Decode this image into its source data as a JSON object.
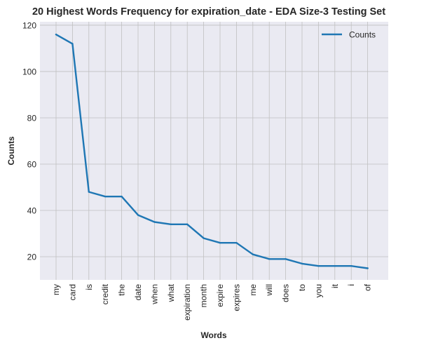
{
  "chart_data": {
    "type": "line",
    "title": "20 Highest Words Frequency for expiration_date - EDA Size-3 Testing Set",
    "xlabel": "Words",
    "ylabel": "Counts",
    "categories": [
      "my",
      "card",
      "is",
      "credit",
      "the",
      "date",
      "when",
      "what",
      "expiration",
      "month",
      "expire",
      "expires",
      "me",
      "will",
      "does",
      "to",
      "you",
      "it",
      "i",
      "of"
    ],
    "series": [
      {
        "name": "Counts",
        "color": "#1f77b4",
        "values": [
          116,
          112,
          48,
          46,
          46,
          38,
          35,
          34,
          34,
          28,
          26,
          26,
          21,
          19,
          19,
          17,
          16,
          16,
          16,
          15
        ]
      }
    ],
    "ylim": [
      10,
      121.5
    ],
    "yticks": [
      20,
      40,
      60,
      80,
      100,
      120
    ],
    "grid": true,
    "legend": "upper right",
    "colors": {
      "plot_bg": "#eaeaf2",
      "grid": "#c0c0c0",
      "line": "#1f77b4"
    }
  }
}
